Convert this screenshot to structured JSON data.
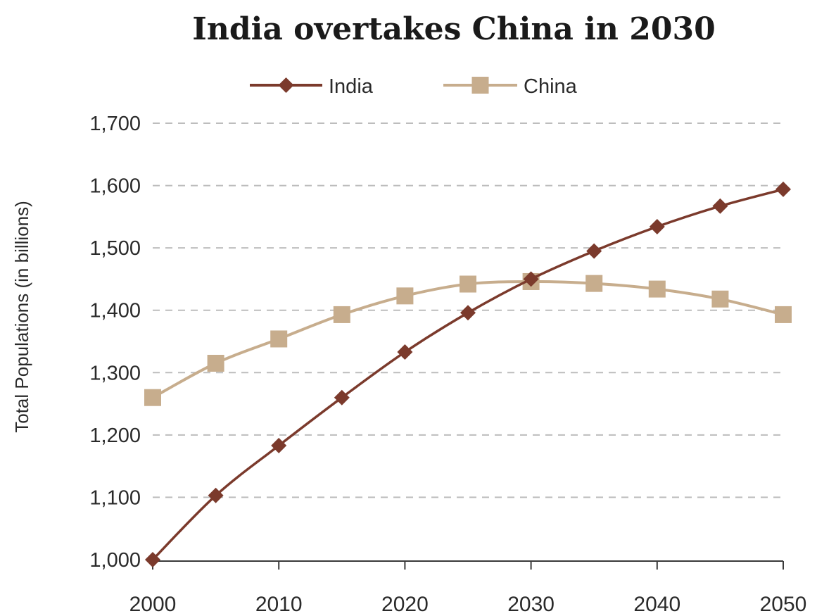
{
  "chart_data": {
    "type": "line",
    "title": "India overtakes China in 2030",
    "ylabel": "Total Populations (in billions)",
    "xlabel": "",
    "x": [
      2000,
      2005,
      2010,
      2015,
      2020,
      2025,
      2030,
      2035,
      2040,
      2045,
      2050
    ],
    "x_ticks": [
      "2000",
      "2010",
      "2020",
      "2030",
      "2040",
      "2050"
    ],
    "x_tick_values": [
      2000,
      2010,
      2020,
      2030,
      2040,
      2050
    ],
    "y_ticks": [
      "1,000",
      "1,100",
      "1,200",
      "1,300",
      "1,400",
      "1,500",
      "1,600",
      "1,700"
    ],
    "y_tick_values": [
      1000,
      1100,
      1200,
      1300,
      1400,
      1500,
      1600,
      1700
    ],
    "xlim": [
      2000,
      2050
    ],
    "ylim": [
      1000,
      1700
    ],
    "grid": "horizontal-dashed",
    "legend_position": "top-center",
    "series": [
      {
        "name": "India",
        "marker": "diamond",
        "color": "#7b3a2c",
        "values": [
          1000,
          1103,
          1183,
          1260,
          1333,
          1396,
          1450,
          1495,
          1534,
          1567,
          1594
        ]
      },
      {
        "name": "China",
        "marker": "square",
        "color": "#c7ad8d",
        "values": [
          1260,
          1315,
          1354,
          1393,
          1423,
          1442,
          1446,
          1443,
          1434,
          1418,
          1393
        ]
      }
    ]
  }
}
